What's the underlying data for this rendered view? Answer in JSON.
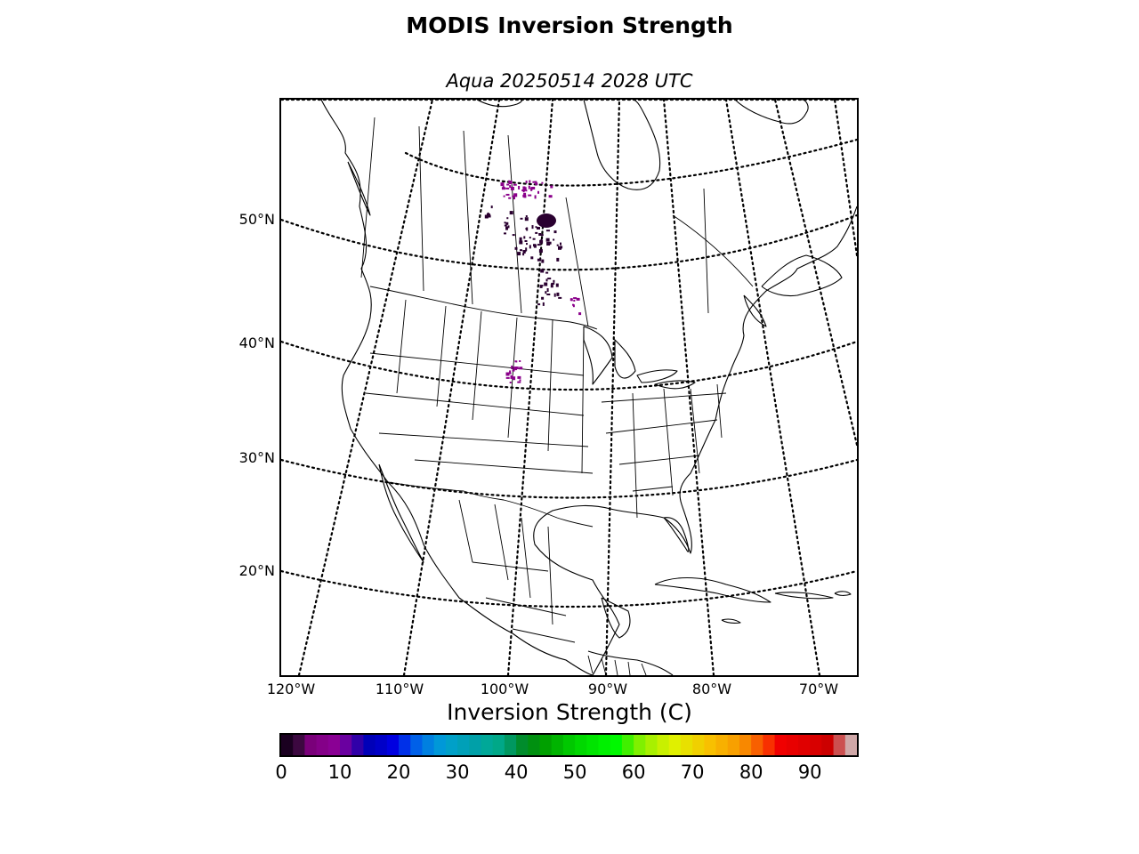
{
  "title": "MODIS Inversion Strength",
  "subtitle": "Aqua 20250514 2028 UTC",
  "map": {
    "latitude_labels": [
      "50°N",
      "40°N",
      "30°N",
      "20°N"
    ],
    "longitude_labels": [
      "120°W",
      "110°W",
      "100°W",
      "90°W",
      "80°W",
      "70°W"
    ],
    "graticule_style": "dotted",
    "data_color_dark": "#2a0030",
    "data_color_purple": "#8a008a"
  },
  "colorbar": {
    "label": "Inversion Strength (C)",
    "range": [
      0,
      98
    ],
    "tick_labels": [
      "0",
      "10",
      "20",
      "30",
      "40",
      "50",
      "60",
      "70",
      "80",
      "90"
    ],
    "colors": [
      "#1a0020",
      "#3c0840",
      "#7a007a",
      "#840088",
      "#8a0094",
      "#6a00a0",
      "#3000a8",
      "#0000b8",
      "#0000c8",
      "#0000e0",
      "#0030e8",
      "#0060e8",
      "#0080e0",
      "#0098d8",
      "#00a0c8",
      "#00a0b8",
      "#00a0a8",
      "#00a898",
      "#00a888",
      "#009860",
      "#008c2c",
      "#009010",
      "#00a000",
      "#00b400",
      "#00c800",
      "#00d800",
      "#00e400",
      "#00f000",
      "#00f800",
      "#40f000",
      "#80f000",
      "#a8f000",
      "#c8f000",
      "#e0f000",
      "#e8e000",
      "#f0d000",
      "#f8c000",
      "#f8b000",
      "#f8a000",
      "#f88800",
      "#f86000",
      "#f83000",
      "#f00000",
      "#e80000",
      "#e00000",
      "#d80000",
      "#cc0000",
      "#cc5050",
      "#d0a8a8"
    ]
  }
}
